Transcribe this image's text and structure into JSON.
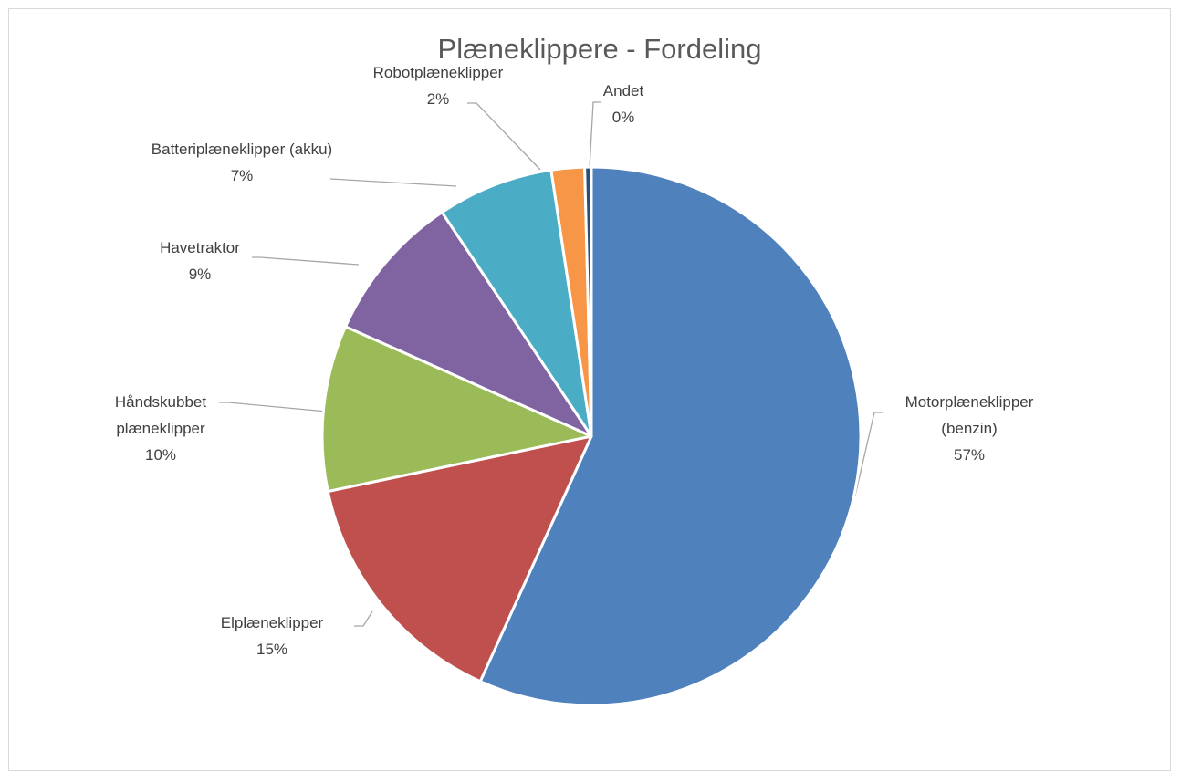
{
  "chart_data": {
    "type": "pie",
    "title": "Plæneklippere - Fordeling",
    "categories": [
      "Motorplæneklipper (benzin)",
      "Elplæneklipper",
      "Håndskubbet plæneklipper",
      "Havetraktor",
      "Batteriplæneklipper (akku)",
      "Robotplæneklipper",
      "Andet"
    ],
    "values": [
      57,
      15,
      10,
      9,
      7,
      2,
      0.4
    ],
    "value_labels": [
      "57%",
      "15%",
      "10%",
      "9%",
      "7%",
      "2%",
      "0%"
    ],
    "colors": [
      "#4f81bd",
      "#c0504d",
      "#9bbb59",
      "#8064a2",
      "#4bacc6",
      "#f79646",
      "#2c4d75"
    ]
  }
}
